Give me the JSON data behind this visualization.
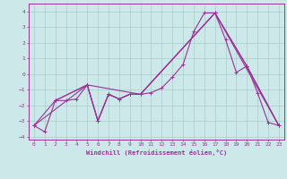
{
  "xlabel": "Windchill (Refroidissement éolien,°C)",
  "xlim": [
    -0.5,
    23.5
  ],
  "ylim": [
    -4.2,
    4.5
  ],
  "yticks": [
    -4,
    -3,
    -2,
    -1,
    0,
    1,
    2,
    3,
    4
  ],
  "xticks": [
    0,
    1,
    2,
    3,
    4,
    5,
    6,
    7,
    8,
    9,
    10,
    11,
    12,
    13,
    14,
    15,
    16,
    17,
    18,
    19,
    20,
    21,
    22,
    23
  ],
  "background_color": "#cce8e8",
  "grid_color": "#aacccc",
  "line_color": "#993399",
  "line1": [
    [
      0,
      -3.3
    ],
    [
      1,
      -3.7
    ],
    [
      2,
      -1.7
    ],
    [
      3,
      -1.7
    ],
    [
      4,
      -1.6
    ],
    [
      5,
      -0.7
    ],
    [
      6,
      -3.0
    ],
    [
      7,
      -1.3
    ],
    [
      8,
      -1.6
    ],
    [
      9,
      -1.3
    ],
    [
      10,
      -1.3
    ],
    [
      11,
      -1.2
    ],
    [
      12,
      -0.9
    ],
    [
      13,
      -0.2
    ],
    [
      14,
      0.6
    ],
    [
      15,
      2.7
    ],
    [
      16,
      3.9
    ],
    [
      17,
      3.9
    ],
    [
      18,
      2.2
    ],
    [
      19,
      0.1
    ],
    [
      20,
      0.5
    ],
    [
      21,
      -1.2
    ],
    [
      22,
      -3.1
    ],
    [
      23,
      -3.3
    ]
  ],
  "line2": [
    [
      0,
      -3.3
    ],
    [
      5,
      -0.7
    ],
    [
      10,
      -1.3
    ],
    [
      17,
      3.9
    ],
    [
      23,
      -3.3
    ]
  ],
  "line3": [
    [
      0,
      -3.3
    ],
    [
      2,
      -1.7
    ],
    [
      5,
      -0.7
    ],
    [
      6,
      -3.0
    ],
    [
      7,
      -1.3
    ],
    [
      8,
      -1.6
    ],
    [
      9,
      -1.3
    ],
    [
      10,
      -1.3
    ],
    [
      17,
      3.9
    ],
    [
      20,
      0.5
    ],
    [
      23,
      -3.3
    ]
  ],
  "line4": [
    [
      2,
      -1.7
    ],
    [
      5,
      -0.7
    ],
    [
      6,
      -3.0
    ],
    [
      7,
      -1.3
    ],
    [
      8,
      -1.6
    ],
    [
      9,
      -1.3
    ],
    [
      10,
      -1.3
    ],
    [
      17,
      3.9
    ],
    [
      20,
      0.5
    ],
    [
      23,
      -3.3
    ]
  ]
}
